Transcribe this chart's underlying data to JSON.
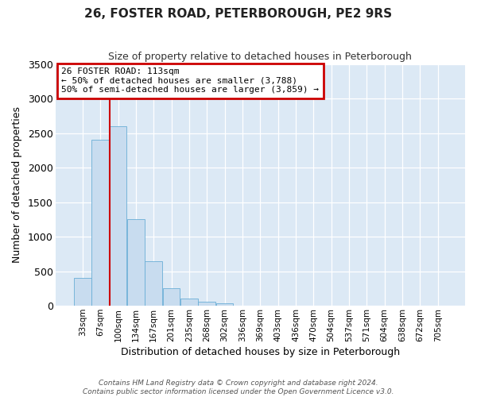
{
  "title": "26, FOSTER ROAD, PETERBOROUGH, PE2 9RS",
  "subtitle": "Size of property relative to detached houses in Peterborough",
  "xlabel": "Distribution of detached houses by size in Peterborough",
  "ylabel": "Number of detached properties",
  "footer_line1": "Contains HM Land Registry data © Crown copyright and database right 2024.",
  "footer_line2": "Contains public sector information licensed under the Open Government Licence v3.0.",
  "bar_labels": [
    "33sqm",
    "67sqm",
    "100sqm",
    "134sqm",
    "167sqm",
    "201sqm",
    "235sqm",
    "268sqm",
    "302sqm",
    "336sqm",
    "369sqm",
    "403sqm",
    "436sqm",
    "470sqm",
    "504sqm",
    "537sqm",
    "571sqm",
    "604sqm",
    "638sqm",
    "672sqm",
    "705sqm"
  ],
  "bar_values": [
    400,
    2400,
    2600,
    1250,
    640,
    260,
    100,
    60,
    35,
    0,
    0,
    0,
    0,
    0,
    0,
    0,
    0,
    0,
    0,
    0,
    0
  ],
  "bar_color": "#c8dcef",
  "bar_edge_color": "#6aaed6",
  "vline_pos": 2.0,
  "vline_color": "#cc0000",
  "annotation_title": "26 FOSTER ROAD: 113sqm",
  "annotation_line1": "← 50% of detached houses are smaller (3,788)",
  "annotation_line2": "50% of semi-detached houses are larger (3,859) →",
  "annotation_box_color": "#cc0000",
  "ylim": [
    0,
    3500
  ],
  "yticks": [
    0,
    500,
    1000,
    1500,
    2000,
    2500,
    3000,
    3500
  ],
  "figsize": [
    6.0,
    5.0
  ],
  "dpi": 100,
  "bg_color": "#dce9f5"
}
